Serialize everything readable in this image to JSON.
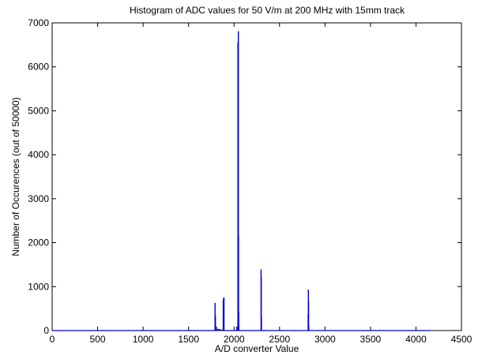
{
  "chart_data": {
    "type": "line",
    "title": "Histogram of ADC values for 50 V/m at 200 MHz with 15mm track",
    "xlabel": "A/D converter Value",
    "ylabel": "Number of Occurences (out of 50000)",
    "xlim": [
      0,
      4500
    ],
    "ylim": [
      0,
      7000
    ],
    "xticks": [
      0,
      500,
      1000,
      1500,
      2000,
      2500,
      3000,
      3500,
      4000,
      4500
    ],
    "yticks": [
      0,
      1000,
      2000,
      3000,
      4000,
      5000,
      6000,
      7000
    ],
    "grid": false,
    "series": [
      {
        "color": "#0000cc",
        "x": [
          0,
          1790,
          1790,
          1792,
          1792,
          1794,
          1794,
          1796,
          1796,
          1800,
          1800,
          1806,
          1806,
          1820,
          1820,
          1880,
          1880,
          1885,
          1885,
          1890,
          1890,
          2030,
          2030,
          2034,
          2034,
          2042,
          2042,
          2044,
          2044,
          2046,
          2046,
          2048,
          2048,
          2050,
          2050,
          2052,
          2052,
          2054,
          2054,
          2056,
          2056,
          2296,
          2296,
          2298,
          2298,
          2300,
          2300,
          2302,
          2302,
          2304,
          2304,
          2814,
          2814,
          2816,
          2816,
          2818,
          2818,
          2820,
          2820,
          2822,
          2822,
          4150
        ],
        "y": [
          0,
          0,
          620,
          620,
          0,
          0,
          330,
          330,
          0,
          0,
          80,
          80,
          0,
          0,
          30,
          0,
          680,
          680,
          740,
          740,
          0,
          0,
          80,
          80,
          0,
          0,
          6550,
          6550,
          300,
          300,
          6800,
          6800,
          2150,
          2150,
          400,
          400,
          100,
          100,
          0,
          0,
          0,
          0,
          1380,
          1380,
          1200,
          1200,
          300,
          300,
          0,
          0,
          0,
          0,
          350,
          350,
          920,
          920,
          650,
          650,
          100,
          100,
          0,
          0
        ]
      }
    ]
  }
}
